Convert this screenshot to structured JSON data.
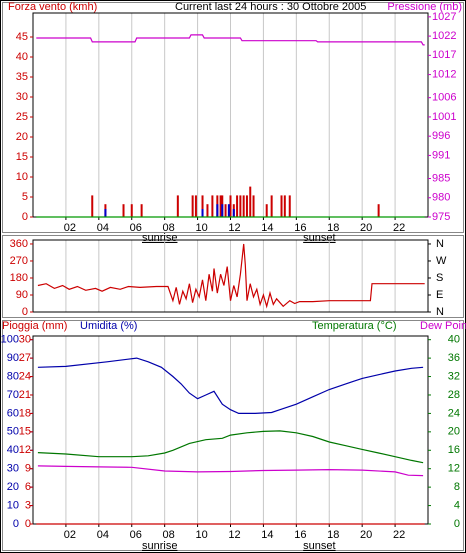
{
  "chart_data": [
    {
      "type": "bar",
      "title": "Current last 24 hours : 30 Ottobre 2005",
      "xlim": [
        0,
        24
      ],
      "xticks": [
        {
          "value": 2,
          "label": "02"
        },
        {
          "value": 4,
          "label": "04"
        },
        {
          "value": 6,
          "label": "06"
        },
        {
          "value": 8,
          "label": "08"
        },
        {
          "value": 10,
          "label": "10"
        },
        {
          "value": 12,
          "label": "12"
        },
        {
          "value": 14,
          "label": "14"
        },
        {
          "value": 16,
          "label": "16"
        },
        {
          "value": 18,
          "label": "18"
        },
        {
          "value": 20,
          "label": "20"
        },
        {
          "value": 22,
          "label": "22"
        }
      ],
      "ylim": [
        0,
        51
      ],
      "yticks": [
        0,
        5,
        10,
        15,
        20,
        25,
        30,
        35,
        40,
        45
      ],
      "y2lim": [
        975,
        1028
      ],
      "y2ticks": [
        975,
        980,
        985,
        991,
        996,
        1001,
        1006,
        1012,
        1017,
        1022,
        1027
      ],
      "grid": true,
      "annotations": [
        {
          "text": "sunrise",
          "x": 7.7
        },
        {
          "text": "sunset",
          "x": 17.4
        }
      ],
      "series": [
        {
          "name": "Forza vento (kmh)",
          "type": "bar",
          "color": "#cc0000",
          "x": [
            3.6,
            4.4,
            5.5,
            6.0,
            6.6,
            8.8,
            9.7,
            9.9,
            10.3,
            10.6,
            10.9,
            11.2,
            11.4,
            11.5,
            11.7,
            12.0,
            12.2,
            12.4,
            12.6,
            12.8,
            13.0,
            13.2,
            13.4,
            14.2,
            14.5,
            15.1,
            15.3,
            15.6,
            21.0
          ],
          "values": [
            5.4,
            3.2,
            3.2,
            3.2,
            3.2,
            5.4,
            5.4,
            5.4,
            5.4,
            3.2,
            5.4,
            5.4,
            5.4,
            5.4,
            3.2,
            5.4,
            3.2,
            5.4,
            5.4,
            5.4,
            5.4,
            7.6,
            5.4,
            3.2,
            5.4,
            5.4,
            5.4,
            5.4,
            3.2
          ]
        },
        {
          "type": "bar",
          "color": "#0000cc",
          "x": [
            4.4,
            10.3,
            11.2,
            11.5,
            11.9,
            12.2
          ],
          "values": [
            2.0,
            2.0,
            3.2,
            3.2,
            3.2,
            2.0
          ]
        },
        {
          "type": "line",
          "color": "#009900",
          "x": [
            0.2,
            23.8
          ],
          "values": [
            0,
            0
          ]
        },
        {
          "name": "Pressione (mb)",
          "type": "line",
          "axis": "y2",
          "color": "#cc00cc",
          "x": [
            0.2,
            3.5,
            3.6,
            6.2,
            6.3,
            9.5,
            9.6,
            10.3,
            10.4,
            12.6,
            12.7,
            17.2,
            17.3,
            23.6,
            23.7,
            23.8
          ],
          "values": [
            1021.5,
            1021.5,
            1020.5,
            1020.5,
            1021.5,
            1021.5,
            1022.3,
            1022.3,
            1021.5,
            1021.5,
            1020.8,
            1020.8,
            1020.5,
            1020.5,
            1019.7,
            1019.7
          ]
        }
      ]
    },
    {
      "type": "line",
      "xlim": [
        0,
        24
      ],
      "ylim": [
        0,
        381
      ],
      "yticks": [
        0,
        90,
        180,
        270,
        360
      ],
      "y2lim": [
        0,
        381
      ],
      "y2ticks": [
        {
          "value": 360,
          "label": "N"
        },
        {
          "value": 270,
          "label": "W"
        },
        {
          "value": 180,
          "label": "S"
        },
        {
          "value": 90,
          "label": "E"
        },
        {
          "value": 0,
          "label": "N"
        }
      ],
      "series": [
        {
          "color": "#cc0000",
          "x": [
            0.3,
            0.8,
            1.3,
            1.8,
            2.2,
            2.7,
            3.2,
            3.8,
            4.2,
            4.7,
            5.3,
            5.8,
            6.5,
            7.5,
            8.2,
            8.5,
            8.7,
            8.9,
            9.1,
            9.3,
            9.5,
            9.7,
            9.9,
            10.1,
            10.3,
            10.5,
            10.7,
            10.9,
            11.0,
            11.2,
            11.4,
            11.6,
            11.8,
            12.0,
            12.2,
            12.4,
            12.6,
            12.8,
            12.9,
            13.0,
            13.2,
            13.4,
            13.6,
            13.8,
            14.0,
            14.2,
            14.4,
            14.6,
            14.8,
            15.2,
            15.6,
            15.9,
            16.2,
            17.0,
            18.0,
            19.5,
            20.5,
            20.6,
            23.8
          ],
          "values": [
            140,
            150,
            125,
            140,
            120,
            135,
            115,
            125,
            110,
            130,
            120,
            135,
            130,
            135,
            135,
            60,
            130,
            40,
            110,
            70,
            150,
            50,
            120,
            80,
            170,
            60,
            200,
            110,
            230,
            100,
            200,
            140,
            240,
            60,
            140,
            80,
            200,
            360,
            250,
            60,
            150,
            80,
            120,
            40,
            90,
            30,
            100,
            40,
            70,
            30,
            60,
            45,
            55,
            55,
            60,
            60,
            60,
            150,
            150
          ]
        }
      ]
    },
    {
      "type": "line",
      "xlim": [
        0,
        24
      ],
      "xticks": [
        {
          "value": 2,
          "label": "02"
        },
        {
          "value": 4,
          "label": "04"
        },
        {
          "value": 6,
          "label": "06"
        },
        {
          "value": 8,
          "label": "08"
        },
        {
          "value": 10,
          "label": "10"
        },
        {
          "value": 12,
          "label": "12"
        },
        {
          "value": 14,
          "label": "14"
        },
        {
          "value": 16,
          "label": "16"
        },
        {
          "value": 18,
          "label": "18"
        },
        {
          "value": 20,
          "label": "20"
        },
        {
          "value": 22,
          "label": "22"
        }
      ],
      "ylim": [
        0,
        102
      ],
      "yticks": [
        0,
        10,
        20,
        30,
        40,
        50,
        60,
        70,
        80,
        90,
        100
      ],
      "y2lim": [
        0,
        40.8
      ],
      "y2ticks": [
        0,
        4,
        8,
        12,
        16,
        20,
        24,
        28,
        32,
        36,
        40
      ],
      "y3lim": [
        0,
        30.6
      ],
      "y3ticks": [
        0,
        3,
        6,
        9,
        12,
        15,
        18,
        21,
        24,
        27,
        30
      ],
      "grid": true,
      "annotations": [
        {
          "text": "sunrise",
          "x": 7.7
        },
        {
          "text": "sunset",
          "x": 17.4
        }
      ],
      "series": [
        {
          "name": "Pioggia (mm)",
          "axis": "y3",
          "color": "#cc0000",
          "x": [
            0.2,
            23.8
          ],
          "values": [
            0,
            0
          ]
        },
        {
          "name": "Umidita (%)",
          "color": "#0000aa",
          "x": [
            0.3,
            2.0,
            4.5,
            6.3,
            7.0,
            7.8,
            8.5,
            9.0,
            9.5,
            10.0,
            10.5,
            11.0,
            11.5,
            12.0,
            12.5,
            13.5,
            14.5,
            15.0,
            16.0,
            17.0,
            18.0,
            19.0,
            20.0,
            21.0,
            22.0,
            23.0,
            23.7
          ],
          "values": [
            85,
            85.5,
            88,
            90,
            88,
            85,
            80,
            76,
            71,
            68,
            70,
            72,
            65,
            62,
            60,
            60,
            60.5,
            62,
            65,
            69,
            73,
            76,
            79,
            81,
            83,
            84.5,
            85
          ]
        },
        {
          "name": "Temperatura (°C)",
          "axis": "y2",
          "color": "#007700",
          "x": [
            0.3,
            2.0,
            4.0,
            6.0,
            7.0,
            8.0,
            8.5,
            9.5,
            10.5,
            11.5,
            12.0,
            13.0,
            14.0,
            15.0,
            16.0,
            17.0,
            18.0,
            19.0,
            20.0,
            21.0,
            22.0,
            23.0,
            23.7
          ],
          "values": [
            15.5,
            15.2,
            14.6,
            14.6,
            14.8,
            15.4,
            16.0,
            17.5,
            18.3,
            18.6,
            19.3,
            19.8,
            20.1,
            20.2,
            19.8,
            19.0,
            17.8,
            17.0,
            16.2,
            15.4,
            14.6,
            13.8,
            13.3
          ]
        },
        {
          "name": "Dew Point",
          "axis": "y2",
          "color": "#cc00cc",
          "x": [
            0.3,
            2.0,
            4.0,
            6.0,
            8.0,
            10.0,
            12.0,
            14.0,
            16.0,
            18.0,
            20.0,
            22.0,
            22.8,
            23.7
          ],
          "values": [
            12.6,
            12.5,
            12.4,
            12.3,
            11.5,
            11.3,
            11.4,
            11.6,
            11.7,
            11.8,
            11.7,
            11.3,
            10.6,
            10.5
          ]
        }
      ]
    }
  ]
}
